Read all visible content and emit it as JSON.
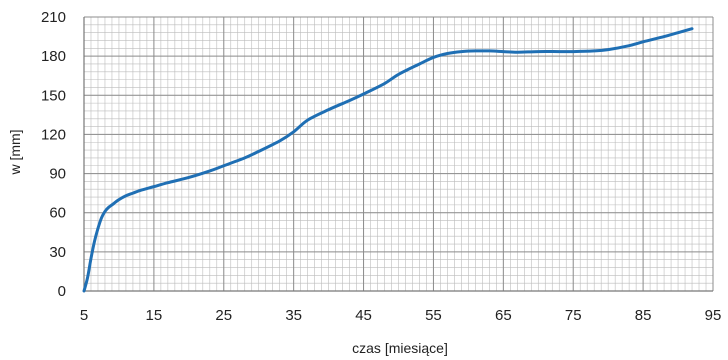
{
  "chart_data": {
    "type": "line",
    "title": "",
    "xlabel": "czas   [miesiące]",
    "ylabel": "w  [mm]",
    "xlim": [
      5,
      95
    ],
    "ylim": [
      0,
      210
    ],
    "x_ticks": [
      5,
      15,
      25,
      35,
      45,
      55,
      65,
      75,
      85,
      95
    ],
    "y_ticks": [
      0,
      30,
      60,
      90,
      120,
      150,
      180,
      210
    ],
    "x_tick_labels": [
      "5",
      "15",
      "25",
      "35",
      "45",
      "55",
      "65",
      "75",
      "85",
      "95"
    ],
    "y_tick_labels": [
      "0",
      "30",
      "60",
      "90",
      "120",
      "150",
      "180",
      "210"
    ],
    "x_minor_step": 1,
    "y_minor_step": 6,
    "grid": true,
    "legend": "none",
    "series": [
      {
        "color": "#1f6fb4",
        "x": [
          5,
          5.5,
          6,
          6.5,
          7,
          7.5,
          8,
          8.5,
          9,
          10,
          11,
          12,
          13,
          15,
          17,
          20,
          23,
          25,
          28,
          30,
          33,
          35,
          37,
          40,
          43,
          45,
          48,
          50,
          53,
          55,
          57,
          59,
          61,
          63,
          65,
          67,
          70,
          73,
          75,
          78,
          80,
          83,
          85,
          88,
          90,
          92
        ],
        "y": [
          0,
          10,
          25,
          38,
          48,
          56,
          61,
          64,
          66,
          70,
          73,
          75,
          77,
          80,
          83,
          87,
          92,
          96,
          102,
          107,
          115,
          122,
          131,
          139,
          146,
          151,
          159,
          166,
          174,
          179,
          182,
          183.5,
          184,
          184,
          183.5,
          183,
          183.5,
          183.5,
          183.5,
          184,
          185,
          188,
          191,
          195,
          198,
          201
        ]
      }
    ]
  }
}
